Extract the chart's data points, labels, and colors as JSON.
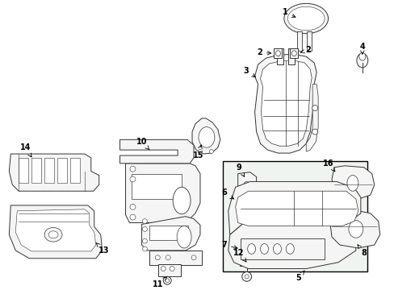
{
  "bg_color": "#ffffff",
  "line_color": "#333333",
  "fill_light": "#f5f5f5",
  "fill_gray": "#e8e8e8"
}
